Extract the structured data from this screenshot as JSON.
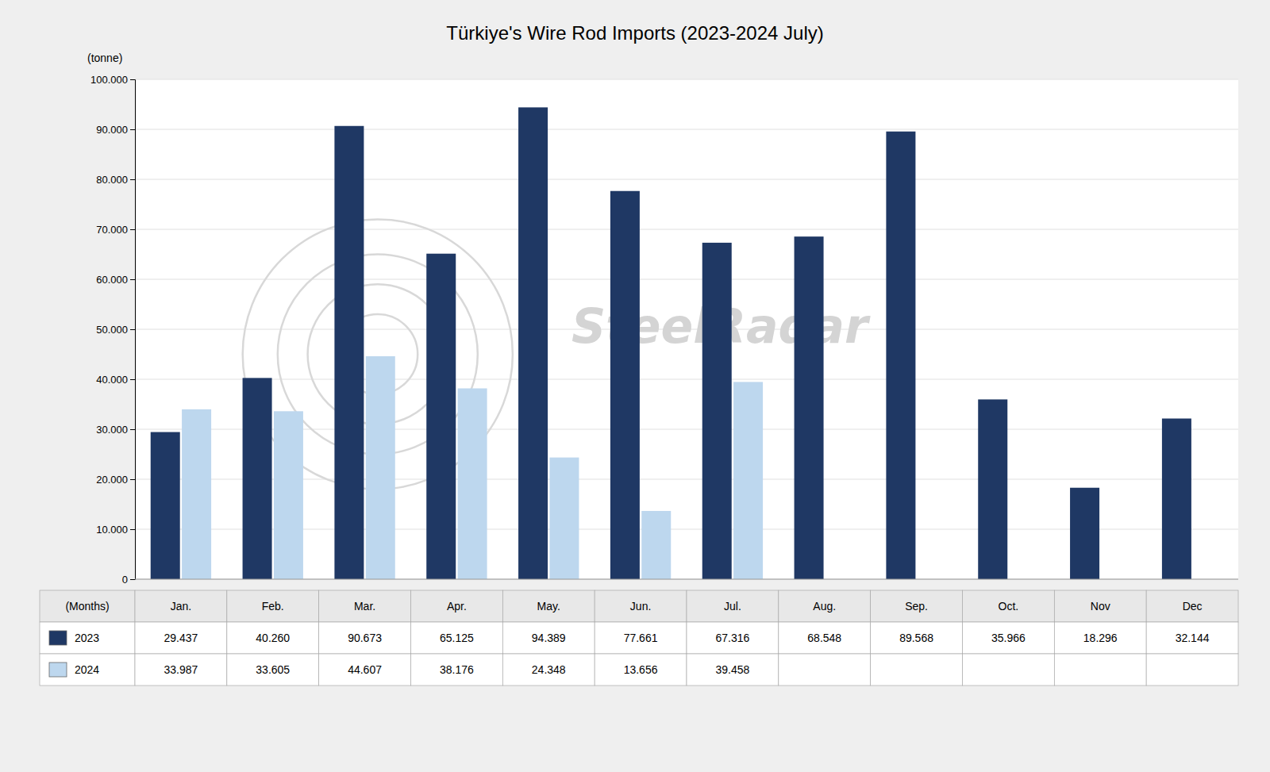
{
  "chart_data": {
    "type": "bar",
    "title": "Türkiye's Wire Rod Imports (2023-2024 July)",
    "ylabel": "(tonne)",
    "xlabel": "(Months)",
    "annotations": [
      "SteelRadar"
    ],
    "categories": [
      "Jan.",
      "Feb.",
      "Mar.",
      "Apr.",
      "May.",
      "Jun.",
      "Jul.",
      "Aug.",
      "Sep.",
      "Oct.",
      "Nov",
      "Dec"
    ],
    "series": [
      {
        "name": "2023",
        "color": "#1F3864",
        "values": [
          29437,
          40260,
          90673,
          65125,
          94389,
          77661,
          67316,
          68548,
          89568,
          35966,
          18296,
          32144
        ],
        "value_labels": [
          "29.437",
          "40.260",
          "90.673",
          "65.125",
          "94.389",
          "77.661",
          "67.316",
          "68.548",
          "89.568",
          "35.966",
          "18.296",
          "32.144"
        ]
      },
      {
        "name": "2024",
        "color": "#BDD7EE",
        "values": [
          33987,
          33605,
          44607,
          38176,
          24348,
          13656,
          39458,
          null,
          null,
          null,
          null,
          null
        ],
        "value_labels": [
          "33.987",
          "33.605",
          "44.607",
          "38.176",
          "24.348",
          "13.656",
          "39.458",
          null,
          null,
          null,
          null,
          null
        ]
      }
    ],
    "ylim": [
      0,
      100000
    ],
    "yticks": [
      0,
      {
        "value": 10000,
        "label": "10.000"
      },
      {
        "value": 20000,
        "label": "20.000"
      },
      {
        "value": 30000,
        "label": "30.000"
      },
      {
        "value": 40000,
        "label": "40.000"
      },
      {
        "value": 50000,
        "label": "50.000"
      },
      {
        "value": 60000,
        "label": "60.000"
      },
      {
        "value": 70000,
        "label": "70.000"
      },
      {
        "value": 80000,
        "label": "80.000"
      },
      {
        "value": 90000,
        "label": "90.000"
      },
      {
        "value": 100000,
        "label": "100.000"
      }
    ],
    "grid": true,
    "tick_labels": "y"
  }
}
